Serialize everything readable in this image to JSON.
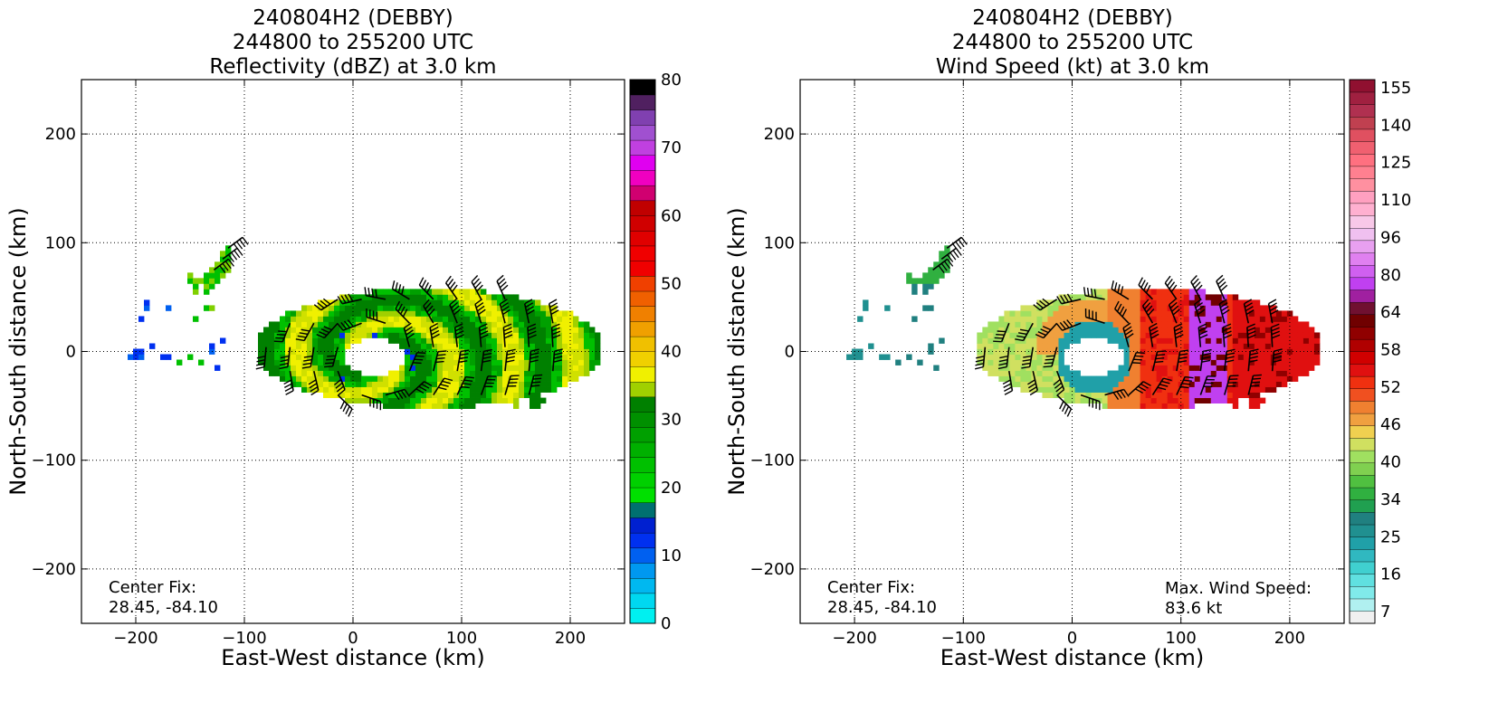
{
  "chart_data": [
    {
      "type": "heatmap",
      "title": [
        "240804H2 (DEBBY)",
        "244800 to 255200 UTC",
        "Reflectivity (dBZ) at 3.0 km"
      ],
      "xlabel": "East-West distance (km)",
      "ylabel": "North-South distance (km)",
      "xlim": [
        -250,
        250
      ],
      "ylim": [
        -250,
        250
      ],
      "xticks": [
        -200,
        -100,
        0,
        100,
        200
      ],
      "yticks": [
        -200,
        -100,
        0,
        100,
        200
      ],
      "grid": true,
      "annotation": [
        "Center Fix:",
        "28.45, -84.10"
      ],
      "colorbar": {
        "min": 0,
        "max": 80,
        "ticks": [
          "0",
          "10",
          "20",
          "30",
          "40",
          "50",
          "60",
          "70",
          "80"
        ],
        "colors": [
          "#00f0f0",
          "#00d8f0",
          "#00b8f0",
          "#0098f0",
          "#0060f0",
          "#0030f0",
          "#0020d0",
          "#007070",
          "#00e000",
          "#00d000",
          "#00c000",
          "#00b000",
          "#00a000",
          "#009000",
          "#008000",
          "#a0d000",
          "#f0f000",
          "#f0d000",
          "#f0c000",
          "#f0a000",
          "#f08000",
          "#f06000",
          "#f04000",
          "#f00000",
          "#f00000",
          "#e00000",
          "#d00000",
          "#c00000",
          "#d00070",
          "#f000c0",
          "#e000f0",
          "#c040e0",
          "#a050d0",
          "#8040b0",
          "#502060",
          "#000000"
        ]
      }
    },
    {
      "type": "heatmap",
      "title": [
        "240804H2 (DEBBY)",
        "244800 to 255200 UTC",
        "Wind Speed (kt) at 3.0 km"
      ],
      "xlabel": "East-West distance (km)",
      "ylabel": "North-South distance (km)",
      "xlim": [
        -250,
        250
      ],
      "ylim": [
        -250,
        250
      ],
      "xticks": [
        -200,
        -100,
        0,
        100,
        200
      ],
      "yticks": [
        -200,
        -100,
        0,
        100,
        200
      ],
      "grid": true,
      "annotation": [
        "Center Fix:",
        "28.45, -84.10"
      ],
      "max_wind_label": [
        "Max. Wind Speed:",
        "83.6 kt"
      ],
      "colorbar": {
        "ticks": [
          "7",
          "16",
          "25",
          "34",
          "40",
          "46",
          "52",
          "58",
          "64",
          "80",
          "96",
          "110",
          "125",
          "140",
          "155"
        ],
        "colors": [
          "#f0f0f0",
          "#b0f0f0",
          "#80eaea",
          "#60e0e0",
          "#40d0d0",
          "#30b8c0",
          "#20a0a8",
          "#209090",
          "#208080",
          "#20a050",
          "#30b040",
          "#50c040",
          "#80d050",
          "#a0e060",
          "#d0e060",
          "#f0d050",
          "#f0a040",
          "#f08030",
          "#f05020",
          "#f03010",
          "#e01010",
          "#d00000",
          "#b00000",
          "#900000",
          "#700000",
          "#701030",
          "#a020a0",
          "#c040f0",
          "#d060f0",
          "#e080f0",
          "#e8a0f0",
          "#f0c0f0",
          "#f8c8e8",
          "#ffb0d0",
          "#ffa0c0",
          "#ff90a0",
          "#ff8090",
          "#ff7080",
          "#f06070",
          "#e05060",
          "#c04050",
          "#b03050",
          "#a02040",
          "#901030"
        ]
      },
      "max_wind_speed": 83.6
    }
  ]
}
